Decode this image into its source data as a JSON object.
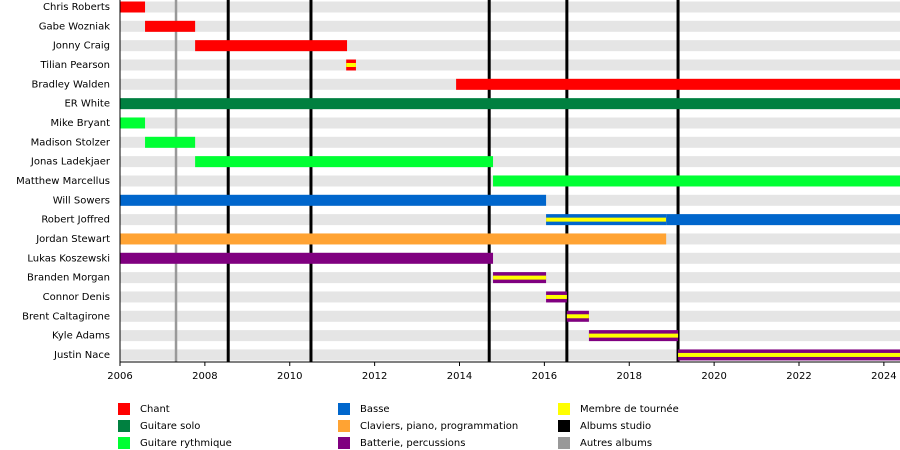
{
  "chart_data": {
    "type": "timeline",
    "xlim": [
      2006,
      2024.38
    ],
    "xticks": [
      2006,
      2008,
      2010,
      2012,
      2014,
      2016,
      2018,
      2020,
      2022,
      2024
    ],
    "touring_color": "#ffff00",
    "members": [
      {
        "name": "Chris Roberts",
        "periods": [
          {
            "start": 2006,
            "end": 2006.59,
            "color": "#ff0000",
            "touring": false
          }
        ]
      },
      {
        "name": "Gabe Wozniak",
        "periods": [
          {
            "start": 2006.59,
            "end": 2007.77,
            "color": "#ff0000",
            "touring": false
          }
        ]
      },
      {
        "name": "Jonny Craig",
        "periods": [
          {
            "start": 2007.77,
            "end": 2011.35,
            "color": "#ff0000",
            "touring": false
          }
        ]
      },
      {
        "name": "Tilian Pearson",
        "periods": [
          {
            "start": 2011.33,
            "end": 2011.56,
            "color": "#ff0000",
            "touring": true
          }
        ]
      },
      {
        "name": "Bradley Walden",
        "periods": [
          {
            "start": 2013.92,
            "end": 2024.38,
            "color": "#ff0000",
            "touring": false
          }
        ]
      },
      {
        "name": "ER White",
        "periods": [
          {
            "start": 2006,
            "end": 2024.38,
            "color": "#008040",
            "touring": false
          }
        ]
      },
      {
        "name": "Mike Bryant",
        "periods": [
          {
            "start": 2006,
            "end": 2006.59,
            "color": "#00ff33",
            "touring": false
          }
        ]
      },
      {
        "name": "Madison Stolzer",
        "periods": [
          {
            "start": 2006.59,
            "end": 2007.77,
            "color": "#00ff33",
            "touring": false
          }
        ]
      },
      {
        "name": "Jonas Ladekjaer",
        "periods": [
          {
            "start": 2007.77,
            "end": 2014.79,
            "color": "#00ff33",
            "touring": false
          }
        ]
      },
      {
        "name": "Matthew Marcellus",
        "periods": [
          {
            "start": 2014.79,
            "end": 2024.38,
            "color": "#00ff33",
            "touring": false
          }
        ]
      },
      {
        "name": "Will Sowers",
        "periods": [
          {
            "start": 2006,
            "end": 2016.04,
            "color": "#0066cc",
            "touring": false
          }
        ]
      },
      {
        "name": "Robert Joffred",
        "periods": [
          {
            "start": 2016.04,
            "end": 2018.87,
            "color": "#0066cc",
            "touring": true
          },
          {
            "start": 2018.87,
            "end": 2024.38,
            "color": "#0066cc",
            "touring": false
          }
        ]
      },
      {
        "name": "Jordan Stewart",
        "periods": [
          {
            "start": 2006,
            "end": 2018.87,
            "color": "#ffa333",
            "touring": false
          }
        ]
      },
      {
        "name": "Lukas Koszewski",
        "periods": [
          {
            "start": 2006,
            "end": 2014.79,
            "color": "#800080",
            "touring": false
          }
        ]
      },
      {
        "name": "Branden Morgan",
        "periods": [
          {
            "start": 2014.79,
            "end": 2016.04,
            "color": "#800080",
            "touring": true
          }
        ]
      },
      {
        "name": "Connor Denis",
        "periods": [
          {
            "start": 2016.04,
            "end": 2016.53,
            "color": "#800080",
            "touring": true
          }
        ]
      },
      {
        "name": "Brent Caltagirone",
        "periods": [
          {
            "start": 2016.53,
            "end": 2017.05,
            "color": "#800080",
            "touring": true
          }
        ]
      },
      {
        "name": "Kyle Adams",
        "periods": [
          {
            "start": 2017.05,
            "end": 2019.15,
            "color": "#800080",
            "touring": true
          }
        ]
      },
      {
        "name": "Justin Nace",
        "periods": [
          {
            "start": 2019.15,
            "end": 2024.38,
            "color": "#800080",
            "touring": true
          }
        ]
      }
    ],
    "legend": [
      {
        "name": "Chant",
        "color": "#ff0000"
      },
      {
        "name": "Guitare solo",
        "color": "#008040"
      },
      {
        "name": "Guitare rythmique",
        "color": "#00ff33"
      },
      {
        "name": "Basse",
        "color": "#0066cc"
      },
      {
        "name": "Claviers, piano, programmation",
        "color": "#ffa333"
      },
      {
        "name": "Batterie, percussions",
        "color": "#800080"
      },
      {
        "name": "Membre de tournée",
        "color": "#ffff00"
      },
      {
        "name": "Albums studio",
        "color": "#000000",
        "values": [
          2008.55,
          2010.5,
          2014.7,
          2016.53,
          2019.15
        ]
      },
      {
        "name": "Autres albums",
        "color": "#999999",
        "values": [
          2007.32
        ]
      }
    ]
  }
}
